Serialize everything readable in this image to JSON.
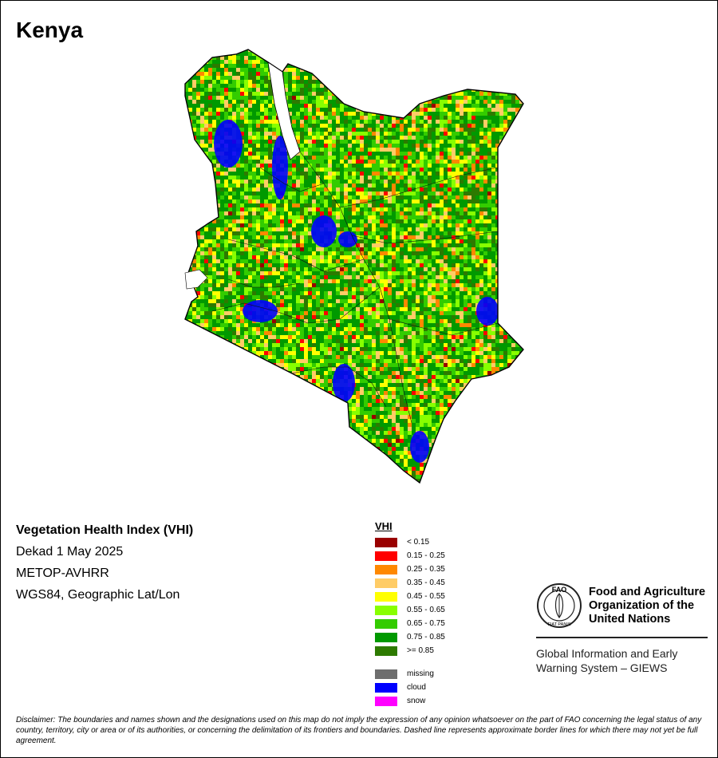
{
  "map": {
    "title": "Kenya",
    "legend_colors": {
      "lt_0_15": "#990000",
      "0_15_0_25": "#ff0000",
      "0_25_0_35": "#ff8800",
      "0_35_0_45": "#ffcc66",
      "0_45_0_55": "#ffff00",
      "0_55_0_65": "#88ff00",
      "0_65_0_75": "#33cc00",
      "0_75_0_85": "#009900",
      "ge_0_85": "#2d7a00",
      "missing": "#6e6e6e",
      "cloud": "#0000ff",
      "snow": "#ff00ff"
    }
  },
  "info": {
    "index_title": "Vegetation Health Index (VHI)",
    "period": "Dekad 1 May 2025",
    "sensor": "METOP-AVHRR",
    "projection": "WGS84, Geographic Lat/Lon"
  },
  "legend": {
    "heading": "VHI",
    "classes": [
      {
        "label": "< 0.15",
        "color": "#990000"
      },
      {
        "label": "0.15 - 0.25",
        "color": "#ff0000"
      },
      {
        "label": "0.25 - 0.35",
        "color": "#ff8800"
      },
      {
        "label": "0.35 - 0.45",
        "color": "#ffcc66"
      },
      {
        "label": "0.45 - 0.55",
        "color": "#ffff00"
      },
      {
        "label": "0.55 - 0.65",
        "color": "#88ff00"
      },
      {
        "label": "0.65 - 0.75",
        "color": "#33cc00"
      },
      {
        "label": "0.75 - 0.85",
        "color": "#009900"
      },
      {
        "label": ">= 0.85",
        "color": "#2d7a00"
      }
    ],
    "special": [
      {
        "label": "missing",
        "color": "#6e6e6e"
      },
      {
        "label": "cloud",
        "color": "#0000ff"
      },
      {
        "label": "snow",
        "color": "#ff00ff"
      }
    ]
  },
  "fao": {
    "logo_text": "FAO",
    "motto": "FIAT PANIS",
    "org_line1": "Food and Agriculture",
    "org_line2": "Organization of the",
    "org_line3": "United Nations",
    "giews_line1": "Global Information and Early",
    "giews_line2": "Warning System – GIEWS"
  },
  "disclaimer": "Disclaimer: The boundaries and names shown and the designations used on this map do not imply the expression of any opinion whatsoever on the part of FAO concerning the legal status of any country, territory, city or area or of its authorities, or concerning the delimitation of its frontiers and boundaries. Dashed line represents approximate border lines for which there may not yet be full agreement."
}
